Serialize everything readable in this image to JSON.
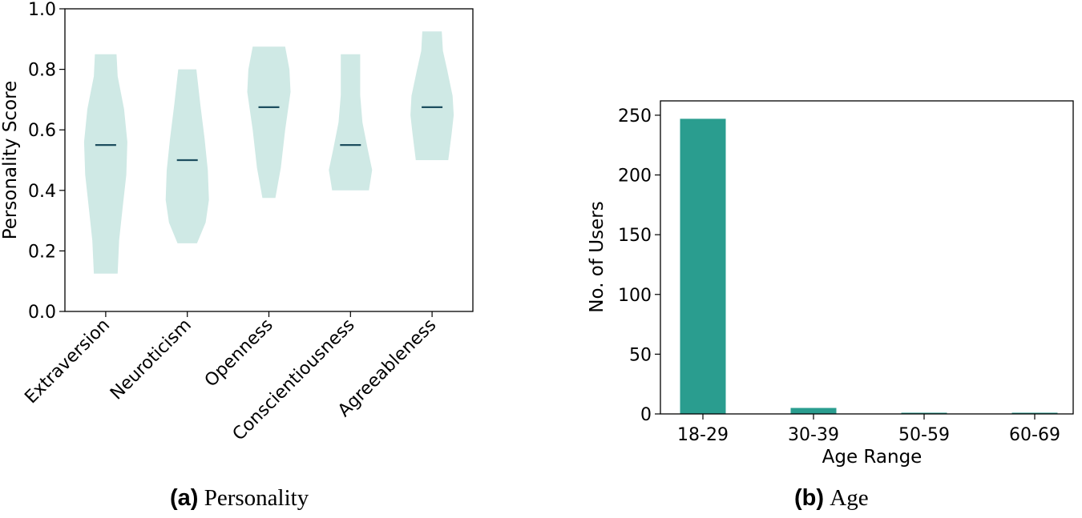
{
  "chart_data": [
    {
      "type": "violin",
      "panel_label": "(a)",
      "caption": "Personality",
      "title": "",
      "xlabel": "",
      "ylabel": "Personality Score",
      "ylim": [
        0.0,
        1.0
      ],
      "yticks": [
        "0.0",
        "0.2",
        "0.4",
        "0.6",
        "0.8",
        "1.0"
      ],
      "fill_color": "#cfe9e5",
      "median_color": "#1d4e5f",
      "categories": [
        "Extraversion",
        "Neuroticism",
        "Openness",
        "Conscientiousness",
        "Agreeableness"
      ],
      "series": [
        {
          "name": "Extraversion",
          "min": 0.125,
          "max": 0.85,
          "median": 0.55
        },
        {
          "name": "Neuroticism",
          "min": 0.225,
          "max": 0.8,
          "median": 0.5
        },
        {
          "name": "Openness",
          "min": 0.375,
          "max": 0.875,
          "median": 0.675
        },
        {
          "name": "Conscientiousness",
          "min": 0.4,
          "max": 0.85,
          "median": 0.55
        },
        {
          "name": "Agreeableness",
          "min": 0.5,
          "max": 0.925,
          "median": 0.675
        }
      ]
    },
    {
      "type": "bar",
      "panel_label": "(b)",
      "caption": "Age",
      "title": "",
      "xlabel": "Age Range",
      "ylabel": "No. of Users",
      "ylim": [
        0,
        262
      ],
      "yticks": [
        "0",
        "50",
        "100",
        "150",
        "200",
        "250"
      ],
      "bar_color": "#2a9d8f",
      "categories": [
        "18-29",
        "30-39",
        "50-59",
        "60-69"
      ],
      "values": [
        247,
        5,
        1,
        1
      ]
    }
  ]
}
